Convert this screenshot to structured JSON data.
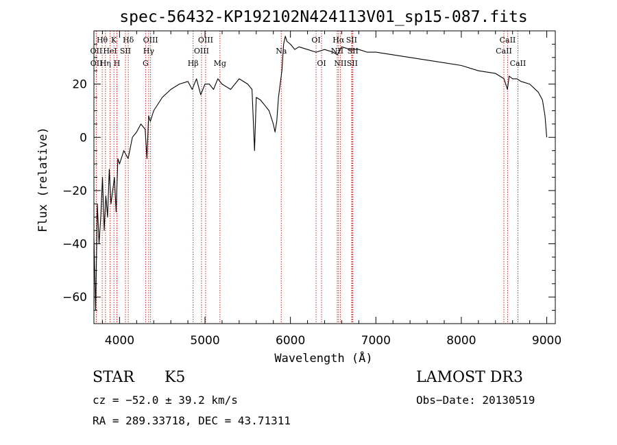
{
  "chart_data": {
    "type": "line",
    "title": "spec-56432-KP192102N424113V01_sp15-087.fits",
    "xlabel": "Wavelength (Å)",
    "ylabel": "Flux (relative)",
    "xlim": [
      3700,
      9100
    ],
    "ylim": [
      -70,
      40
    ],
    "xticks": [
      4000,
      5000,
      6000,
      7000,
      8000,
      9000
    ],
    "yticks": [
      -60,
      -40,
      -20,
      0,
      20
    ],
    "xtick_labels": [
      "4000",
      "5000",
      "6000",
      "7000",
      "8000",
      "9000"
    ],
    "ytick_labels": [
      "−60",
      "−40",
      "−20",
      "0",
      "20"
    ],
    "series": [
      {
        "name": "spectrum",
        "x": [
          3700,
          3720,
          3740,
          3760,
          3780,
          3800,
          3820,
          3840,
          3860,
          3880,
          3900,
          3920,
          3940,
          3960,
          3980,
          4000,
          4050,
          4100,
          4150,
          4200,
          4250,
          4300,
          4320,
          4340,
          4360,
          4400,
          4500,
          4600,
          4700,
          4800,
          4850,
          4900,
          4950,
          5000,
          5050,
          5100,
          5150,
          5200,
          5300,
          5400,
          5500,
          5550,
          5580,
          5600,
          5650,
          5700,
          5750,
          5800,
          5820,
          5840,
          5860,
          5880,
          5900,
          5920,
          5940,
          5960,
          6000,
          6050,
          6100,
          6200,
          6300,
          6400,
          6500,
          6550,
          6600,
          6700,
          6800,
          6900,
          7000,
          7200,
          7400,
          7600,
          7800,
          8000,
          8200,
          8400,
          8500,
          8540,
          8560,
          8600,
          8650,
          8700,
          8800,
          8900,
          8950,
          8980,
          9000
        ],
        "y": [
          -38,
          -65,
          -25,
          -40,
          -30,
          -15,
          -35,
          -22,
          -30,
          -12,
          -25,
          -20,
          -15,
          -28,
          -8,
          -10,
          -5,
          -8,
          0,
          2,
          5,
          3,
          -8,
          8,
          6,
          10,
          15,
          18,
          20,
          21,
          18,
          22,
          16,
          20,
          20,
          18,
          22,
          20,
          18,
          22,
          20,
          18,
          -5,
          15,
          14,
          12,
          10,
          5,
          2,
          6,
          15,
          20,
          25,
          35,
          38,
          36,
          35,
          33,
          34,
          33,
          32,
          33,
          32,
          31,
          34,
          33,
          33,
          32,
          32,
          31,
          30,
          29,
          28,
          27,
          25,
          24,
          22,
          18,
          23,
          22,
          22,
          21,
          20,
          17,
          14,
          8,
          0
        ]
      }
    ],
    "lines": [
      {
        "label": "Hθ",
        "x": 3797,
        "row": 0
      },
      {
        "label": "OII",
        "x": 3727,
        "row": 1
      },
      {
        "label": "OII",
        "x": 3729,
        "row": 2
      },
      {
        "label": "K",
        "x": 3934,
        "row": 0
      },
      {
        "label": "HeI",
        "x": 3889,
        "row": 1
      },
      {
        "label": "Hη",
        "x": 3835,
        "row": 2
      },
      {
        "label": "Hδ",
        "x": 4102,
        "row": 0
      },
      {
        "label": "SII",
        "x": 4069,
        "row": 1
      },
      {
        "label": "H",
        "x": 3969,
        "row": 2
      },
      {
        "label": "OIII",
        "x": 4363,
        "row": 0
      },
      {
        "label": "Hγ",
        "x": 4341,
        "row": 1
      },
      {
        "label": "G",
        "x": 4305,
        "row": 2
      },
      {
        "label": "OIII",
        "x": 5007,
        "row": 0
      },
      {
        "label": "OIII",
        "x": 4959,
        "row": 1
      },
      {
        "label": "Hβ",
        "x": 4861,
        "row": 2
      },
      {
        "label": "Mg",
        "x": 5175,
        "row": 2
      },
      {
        "label": "Na",
        "x": 5893,
        "row": 1
      },
      {
        "label": "OI",
        "x": 6300,
        "row": 0
      },
      {
        "label": "OI",
        "x": 6364,
        "row": 2
      },
      {
        "label": "Hα",
        "x": 6563,
        "row": 0
      },
      {
        "label": "NII",
        "x": 6548,
        "row": 1
      },
      {
        "label": "NII",
        "x": 6584,
        "row": 2
      },
      {
        "label": "SII",
        "x": 6716,
        "row": 0
      },
      {
        "label": "SII",
        "x": 6731,
        "row": 1
      },
      {
        "label": "SII",
        "x": 6724,
        "row": 2
      },
      {
        "label": "CaII",
        "x": 8542,
        "row": 0
      },
      {
        "label": "CaII",
        "x": 8498,
        "row": 1
      },
      {
        "label": "CaII",
        "x": 8662,
        "row": 2
      }
    ]
  },
  "info": {
    "object_class": "STAR",
    "subclass": "K5",
    "survey": "LAMOST DR3",
    "cz": "cz = −52.0 ± 39.2 km/s",
    "obs_date": "Obs−Date: 20130519",
    "coords": "RA = 289.33718, DEC =  43.71311"
  },
  "colors": {
    "line_marker": "#cc2222",
    "spectrum": "#000000",
    "axes": "#000000"
  }
}
